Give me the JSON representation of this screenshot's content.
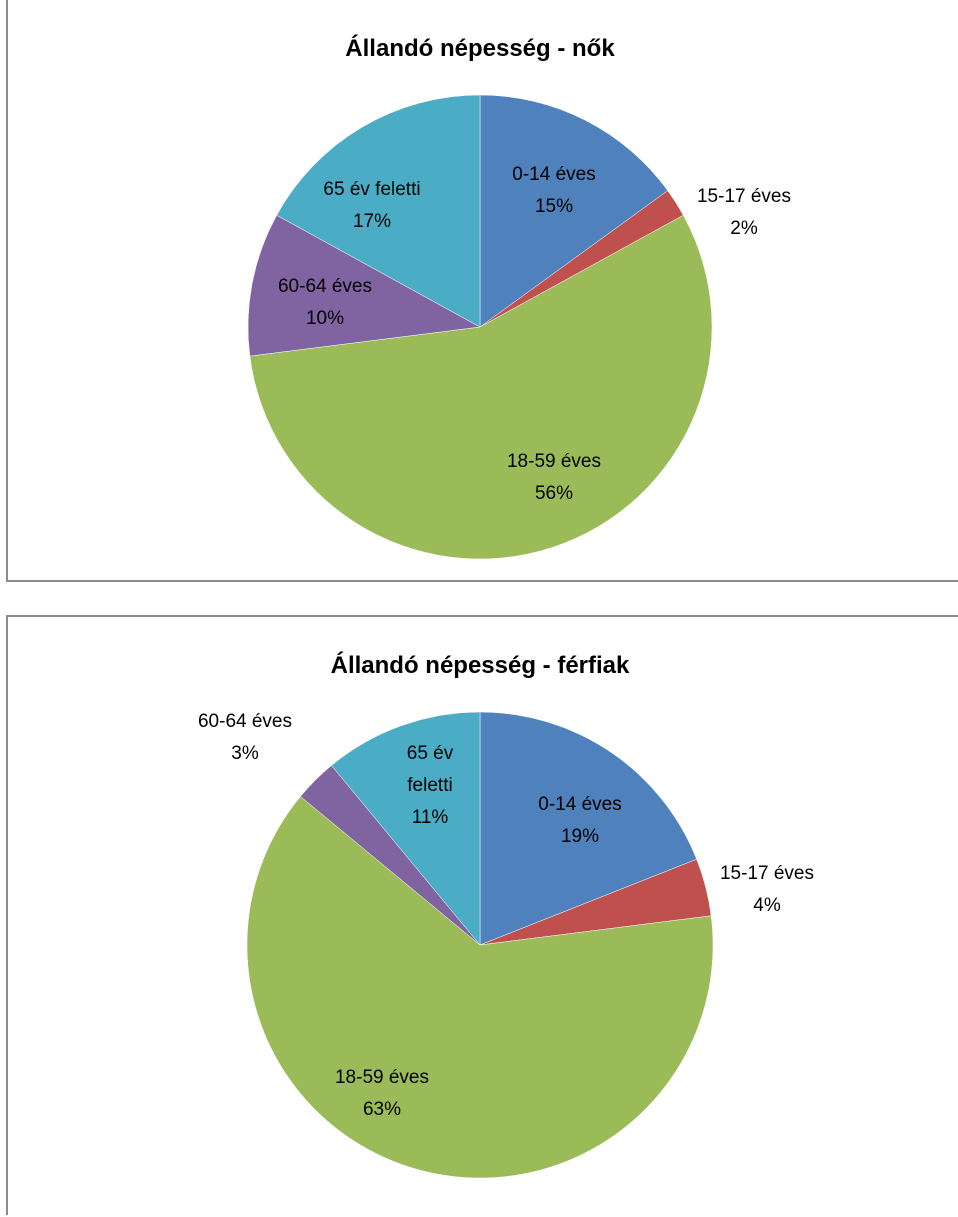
{
  "chart_data": [
    {
      "type": "pie",
      "title": "Állandó népesség - nők",
      "slices": [
        {
          "label": "0-14 éves",
          "value": 15,
          "value_label": "15%",
          "color": "#4f81bd"
        },
        {
          "label": "15-17 éves",
          "value": 2,
          "value_label": "2%",
          "color": "#c0504d"
        },
        {
          "label": "18-59 éves",
          "value": 56,
          "value_label": "56%",
          "color": "#9bbb59"
        },
        {
          "label": "60-64 éves",
          "value": 10,
          "value_label": "10%",
          "color": "#8064a2"
        },
        {
          "label": "65 év feletti",
          "value": 17,
          "value_label": "17%",
          "color": "#4bacc6"
        }
      ]
    },
    {
      "type": "pie",
      "title": "Állandó népesség - férfiak",
      "slices": [
        {
          "label": "0-14 éves",
          "value": 19,
          "value_label": "19%",
          "color": "#4f81bd"
        },
        {
          "label": "15-17 éves",
          "value": 4,
          "value_label": "4%",
          "color": "#c0504d"
        },
        {
          "label": "18-59 éves",
          "value": 63,
          "value_label": "63%",
          "color": "#9bbb59"
        },
        {
          "label": "60-64 éves",
          "value": 3,
          "value_label": "3%",
          "color": "#8064a2"
        },
        {
          "label": "65 év feletti",
          "value": 11,
          "value_label": "11%",
          "color": "#4bacc6"
        }
      ]
    }
  ]
}
